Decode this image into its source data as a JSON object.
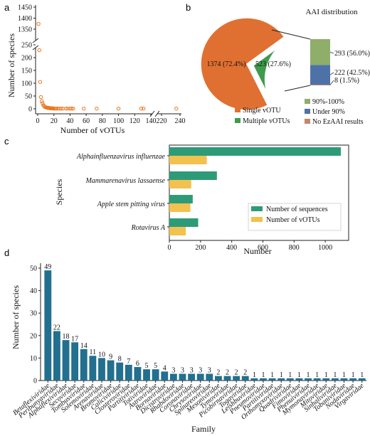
{
  "panels": {
    "a": "a",
    "b": "b",
    "c": "c",
    "d": "d"
  },
  "chart_data": [
    {
      "panel": "a",
      "type": "scatter",
      "xlabel": "Number of vOTUs",
      "ylabel": "Number of species",
      "color": "#e87722",
      "x_broken_axis": true,
      "y_broken_axis": true,
      "xticks_left": [
        "0",
        "20",
        "40",
        "60",
        "80",
        "100",
        "120",
        "140"
      ],
      "xticks_right": [
        "220",
        "240"
      ],
      "yticks_bottom": [
        "0",
        "50",
        "100",
        "150",
        "200",
        "250"
      ],
      "yticks_top": [
        "1350",
        "1400",
        "1450"
      ],
      "points": [
        {
          "x": 1,
          "y": 1374
        },
        {
          "x": 2,
          "y": 229
        },
        {
          "x": 3,
          "y": 105
        },
        {
          "x": 4,
          "y": 46
        },
        {
          "x": 5,
          "y": 30
        },
        {
          "x": 6,
          "y": 22
        },
        {
          "x": 7,
          "y": 14
        },
        {
          "x": 8,
          "y": 10
        },
        {
          "x": 9,
          "y": 7
        },
        {
          "x": 10,
          "y": 6
        },
        {
          "x": 11,
          "y": 5
        },
        {
          "x": 12,
          "y": 4
        },
        {
          "x": 13,
          "y": 4
        },
        {
          "x": 14,
          "y": 3
        },
        {
          "x": 15,
          "y": 3
        },
        {
          "x": 16,
          "y": 2
        },
        {
          "x": 17,
          "y": 2
        },
        {
          "x": 18,
          "y": 2
        },
        {
          "x": 19,
          "y": 2
        },
        {
          "x": 20,
          "y": 1
        },
        {
          "x": 22,
          "y": 1
        },
        {
          "x": 23,
          "y": 1
        },
        {
          "x": 25,
          "y": 1
        },
        {
          "x": 27,
          "y": 1
        },
        {
          "x": 29,
          "y": 1
        },
        {
          "x": 31,
          "y": 1
        },
        {
          "x": 35,
          "y": 1
        },
        {
          "x": 37,
          "y": 1
        },
        {
          "x": 40,
          "y": 1
        },
        {
          "x": 42,
          "y": 1
        },
        {
          "x": 44,
          "y": 1
        },
        {
          "x": 57,
          "y": 1
        },
        {
          "x": 73,
          "y": 1
        },
        {
          "x": 100,
          "y": 1
        },
        {
          "x": 128,
          "y": 1
        },
        {
          "x": 131,
          "y": 1
        },
        {
          "x": 236,
          "y": 1
        }
      ]
    },
    {
      "panel": "b",
      "type": "pie",
      "slices": [
        {
          "label": "Single vOTU",
          "value": 1374,
          "text": "1374 (72.4%)",
          "color": "#e07032"
        },
        {
          "label": "Multiple vOTUs",
          "value": 523,
          "text": "523 (27.6%)",
          "color": "#3e9b4c"
        }
      ],
      "aai": {
        "title": "AAI distribution",
        "segments": [
          {
            "label": "90%-100%",
            "value": 293,
            "text": "293 (56.0%)",
            "color": "#8fae6a"
          },
          {
            "label": "Under 90%",
            "value": 222,
            "text": "222 (42.5%)",
            "color": "#4e72a8"
          },
          {
            "label": "No EzAAI results",
            "value": 8,
            "text": "8 (1.5%)",
            "color": "#c5866a"
          }
        ]
      },
      "legend": [
        "Single vOTU",
        "Multiple vOTUs",
        "90%-100%",
        "Under 90%",
        "No EzAAI results"
      ]
    },
    {
      "panel": "c",
      "type": "bar",
      "orientation": "horizontal",
      "categories": [
        "Alphainfluenzavirus influenzae",
        "Mammarenavirus lassaense",
        "Apple stem pitting virus",
        "Rotavirus A"
      ],
      "series": [
        {
          "name": "Number of sequences",
          "color": "#2e9b78",
          "values": [
            1100,
            305,
            150,
            185
          ]
        },
        {
          "name": "Number of vOTUs",
          "color": "#f2c14e",
          "values": [
            240,
            140,
            135,
            105
          ]
        }
      ],
      "xlabel": "Number",
      "ylabel": "Species",
      "xlim": [
        0,
        1150
      ],
      "xticks": [
        "0",
        "200",
        "400",
        "600",
        "800",
        "1000"
      ],
      "legend_position": "bottom-right"
    },
    {
      "panel": "d",
      "type": "bar",
      "color": "#236f8f",
      "xlabel": "Family",
      "ylabel": "Number of species",
      "ylim": [
        0,
        50
      ],
      "yticks": [
        "0",
        "10",
        "20",
        "30",
        "40",
        "50"
      ],
      "categories": [
        "Betaflexiviridae",
        "Peribunyaviridae",
        "Alphaflexiviridae",
        "Secoviridae",
        "Tombusviridae",
        "Solemoviridae",
        "Arenaviridae",
        "Bromoviridae",
        "Caliciviridae",
        "Closteroviridae",
        "Partitiviridae",
        "Totiviridae",
        "Astroviridae",
        "Bornaviridae",
        "Dicistroviridae",
        "Rhabdoviridae",
        "Coronaviridae",
        "Chrysoviridae",
        "Spinareoviridae",
        "Mesoniviridae",
        "Tymoviridae",
        "Picobirnaviridae",
        "Togaviridae",
        "Leishbuviridae",
        "Pneumoviridae",
        "Partitiviridae",
        "Orthomyxoviridae",
        "Quadriviridae",
        "Fimoviridae",
        "Phenuiviridae",
        "Mymonaviridae",
        "Mitoviridae",
        "Sinhaliviridae",
        "Tobaniviridae",
        "Nodaviridae",
        "Virgaviridae"
      ],
      "values": [
        49,
        22,
        18,
        17,
        14,
        11,
        10,
        9,
        8,
        7,
        6,
        5,
        5,
        4,
        3,
        3,
        3,
        3,
        3,
        2,
        2,
        2,
        2,
        1,
        1,
        1,
        1,
        1,
        1,
        1,
        1,
        1,
        1,
        1,
        1,
        1
      ]
    }
  ]
}
